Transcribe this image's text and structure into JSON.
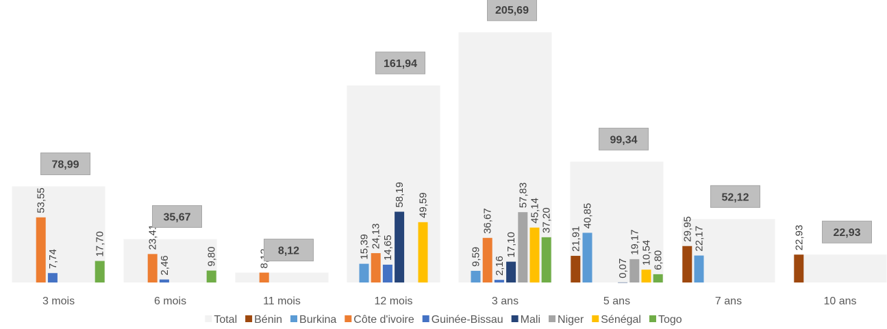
{
  "chart_data": {
    "type": "bar",
    "categories": [
      "3 mois",
      "6 mois",
      "11 mois",
      "12 mois",
      "3 ans",
      "5 ans",
      "7 ans",
      "10 ans"
    ],
    "ylim": [
      0,
      230
    ],
    "series": [
      {
        "name": "Total",
        "color": "#f2f2f2",
        "values": [
          78.99,
          35.67,
          8.12,
          161.94,
          205.69,
          99.34,
          52.12,
          22.93
        ],
        "value_labels": [
          "78,99",
          "35,67",
          "8,12",
          "161,94",
          "205,69",
          "99,34",
          "52,12",
          "22,93"
        ]
      },
      {
        "name": "Bénin",
        "color": "#9e480e",
        "values": [
          null,
          null,
          null,
          null,
          null,
          21.91,
          29.95,
          22.93
        ],
        "value_labels": [
          null,
          null,
          null,
          null,
          null,
          "21,91",
          "29,95",
          "22,93"
        ]
      },
      {
        "name": "Burkina",
        "color": "#5b9bd5",
        "values": [
          null,
          null,
          null,
          15.39,
          9.59,
          40.85,
          22.17,
          null
        ],
        "value_labels": [
          null,
          null,
          null,
          "15,39",
          "9,59",
          "40,85",
          "22,17",
          null
        ]
      },
      {
        "name": "Côte d'ivoire",
        "color": "#ed7d31",
        "values": [
          53.55,
          23.41,
          8.12,
          24.13,
          36.67,
          null,
          null,
          null
        ],
        "value_labels": [
          "53,55",
          "23,41",
          "8,12",
          "24,13",
          "36,67",
          null,
          null,
          null
        ]
      },
      {
        "name": "Guinée-Bissau",
        "color": "#4472c4",
        "values": [
          7.74,
          2.46,
          null,
          14.65,
          2.16,
          null,
          null,
          null
        ],
        "value_labels": [
          "7,74",
          "2,46",
          null,
          "14,65",
          "2,16",
          null,
          null,
          null
        ]
      },
      {
        "name": "Mali",
        "color": "#264478",
        "values": [
          null,
          null,
          null,
          58.19,
          17.1,
          0.07,
          null,
          null
        ],
        "value_labels": [
          null,
          null,
          null,
          "58,19",
          "17,10",
          "0,07",
          null,
          null
        ]
      },
      {
        "name": "Niger",
        "color": "#a5a5a5",
        "values": [
          null,
          null,
          null,
          null,
          57.83,
          19.17,
          null,
          null
        ],
        "value_labels": [
          null,
          null,
          null,
          null,
          "57,83",
          "19,17",
          null,
          null
        ]
      },
      {
        "name": "Sénégal",
        "color": "#ffc000",
        "values": [
          null,
          null,
          null,
          49.59,
          45.14,
          10.54,
          null,
          null
        ],
        "value_labels": [
          null,
          null,
          null,
          "49,59",
          "45,14",
          "10,54",
          null,
          null
        ]
      },
      {
        "name": "Togo",
        "color": "#70ad47",
        "values": [
          17.7,
          9.8,
          null,
          null,
          37.2,
          6.8,
          null,
          null
        ],
        "value_labels": [
          "17,70",
          "9,80",
          null,
          null,
          "37,20",
          "6,80",
          null,
          null
        ]
      }
    ],
    "legend": "bottom"
  }
}
